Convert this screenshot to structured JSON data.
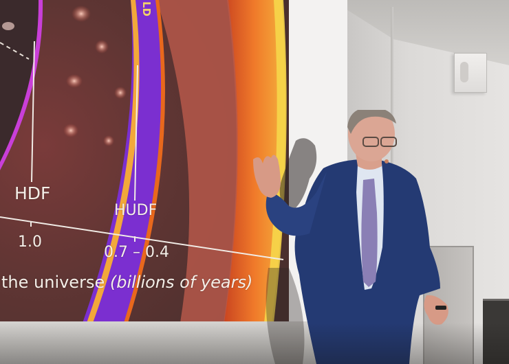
{
  "slide": {
    "marker_left": "HDF",
    "marker_right": "HUDF",
    "value_left": "1.0",
    "value_right": "0.7 – 0.4",
    "axis_prefix": "the universe ",
    "axis_italic": "(billions of years)",
    "edge_text": "LD"
  },
  "colors": {
    "purple_band": "#7b2fd0",
    "orange_ring": "#e8681d",
    "yellow_edge": "#f6d64a",
    "screen_white": "#f3f2f1",
    "suit_blue": "#243a73",
    "tie_lavender": "#8a7fb5"
  }
}
